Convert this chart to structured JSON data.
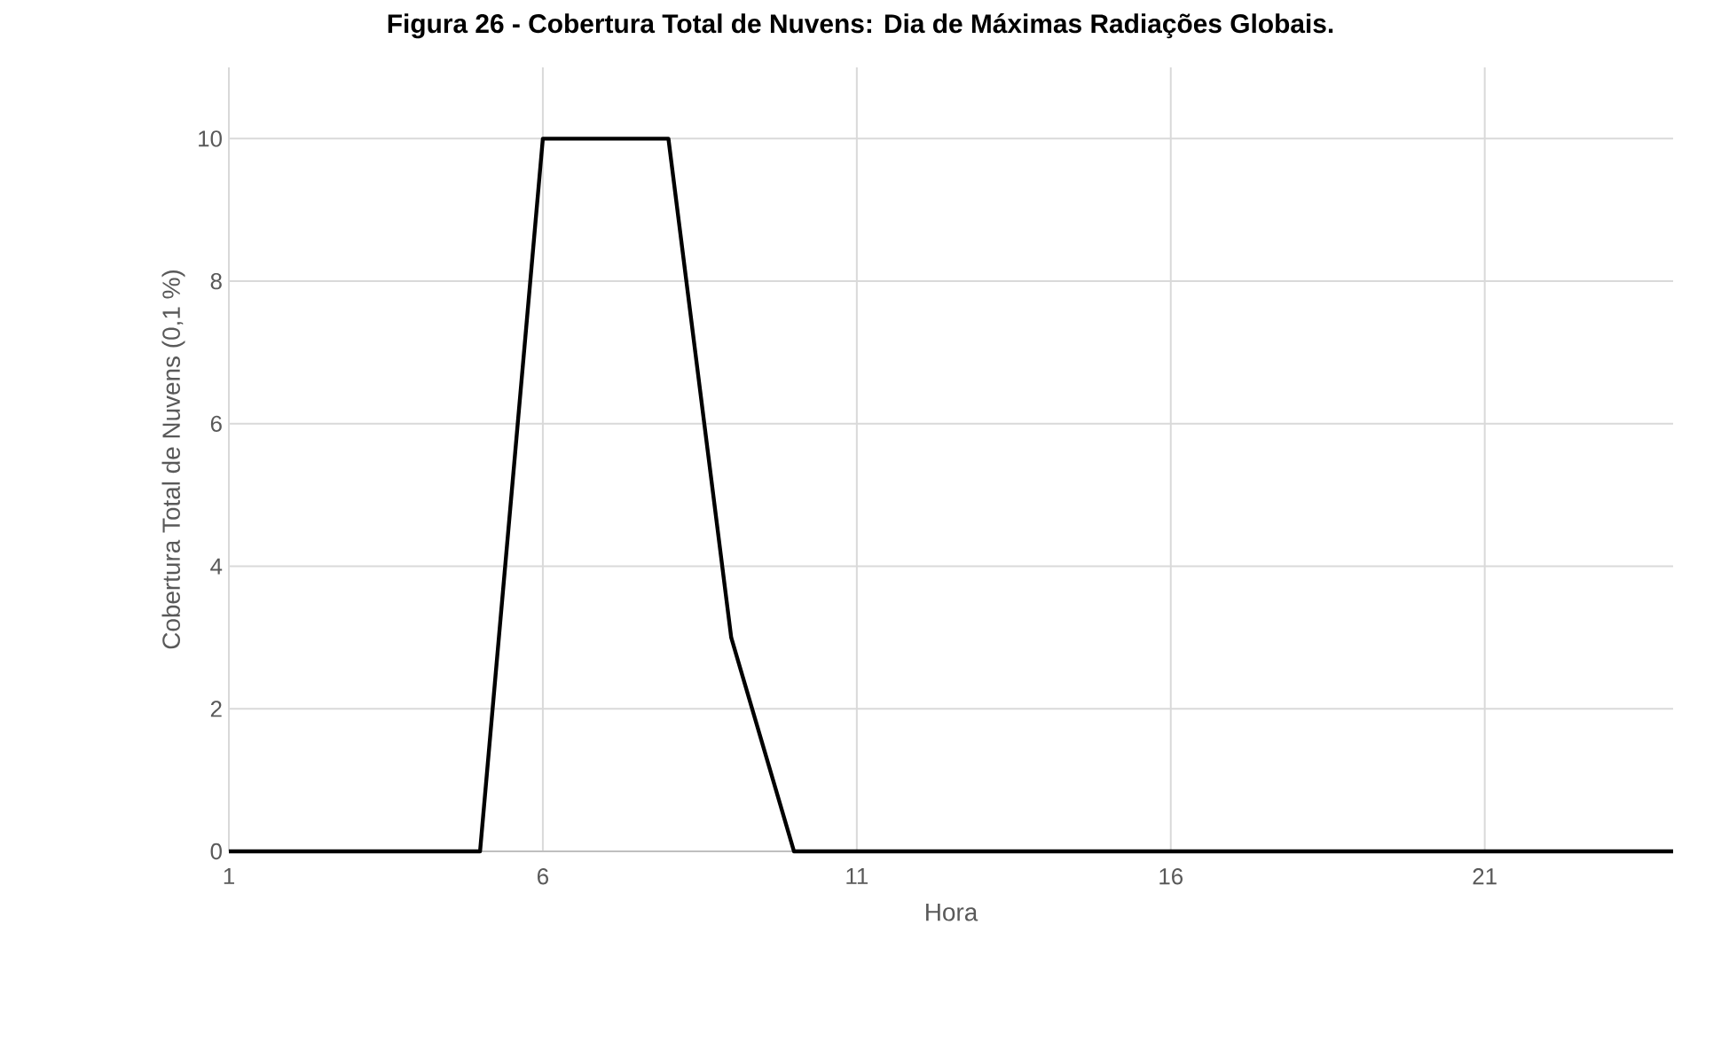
{
  "chart_data": {
    "type": "line",
    "title": "Figura 26 - Cobertura Total de Nuvens: Dia de Máximas Radiações Globais.",
    "xlabel": "Hora",
    "ylabel": "Cobertura Total de Nuvens (0,1 %)",
    "x": [
      1,
      2,
      3,
      4,
      5,
      6,
      7,
      8,
      9,
      10,
      11,
      12,
      13,
      14,
      15,
      16,
      17,
      18,
      19,
      20,
      21,
      22,
      23,
      24
    ],
    "series": [
      {
        "color": "#000000",
        "values": [
          0,
          0,
          0,
          0,
          0,
          10,
          10,
          10,
          3,
          0,
          0,
          0,
          0,
          0,
          0,
          0,
          0,
          0,
          0,
          0,
          0,
          0,
          0,
          0
        ]
      }
    ],
    "xlim": [
      1,
      24
    ],
    "xticks": [
      1,
      6,
      11,
      16,
      21
    ],
    "ylim": [
      0,
      11
    ],
    "yticks": [
      0,
      2,
      4,
      6,
      8,
      10
    ],
    "grid": true,
    "legend": false,
    "marker": "none",
    "line_style": "solid"
  }
}
